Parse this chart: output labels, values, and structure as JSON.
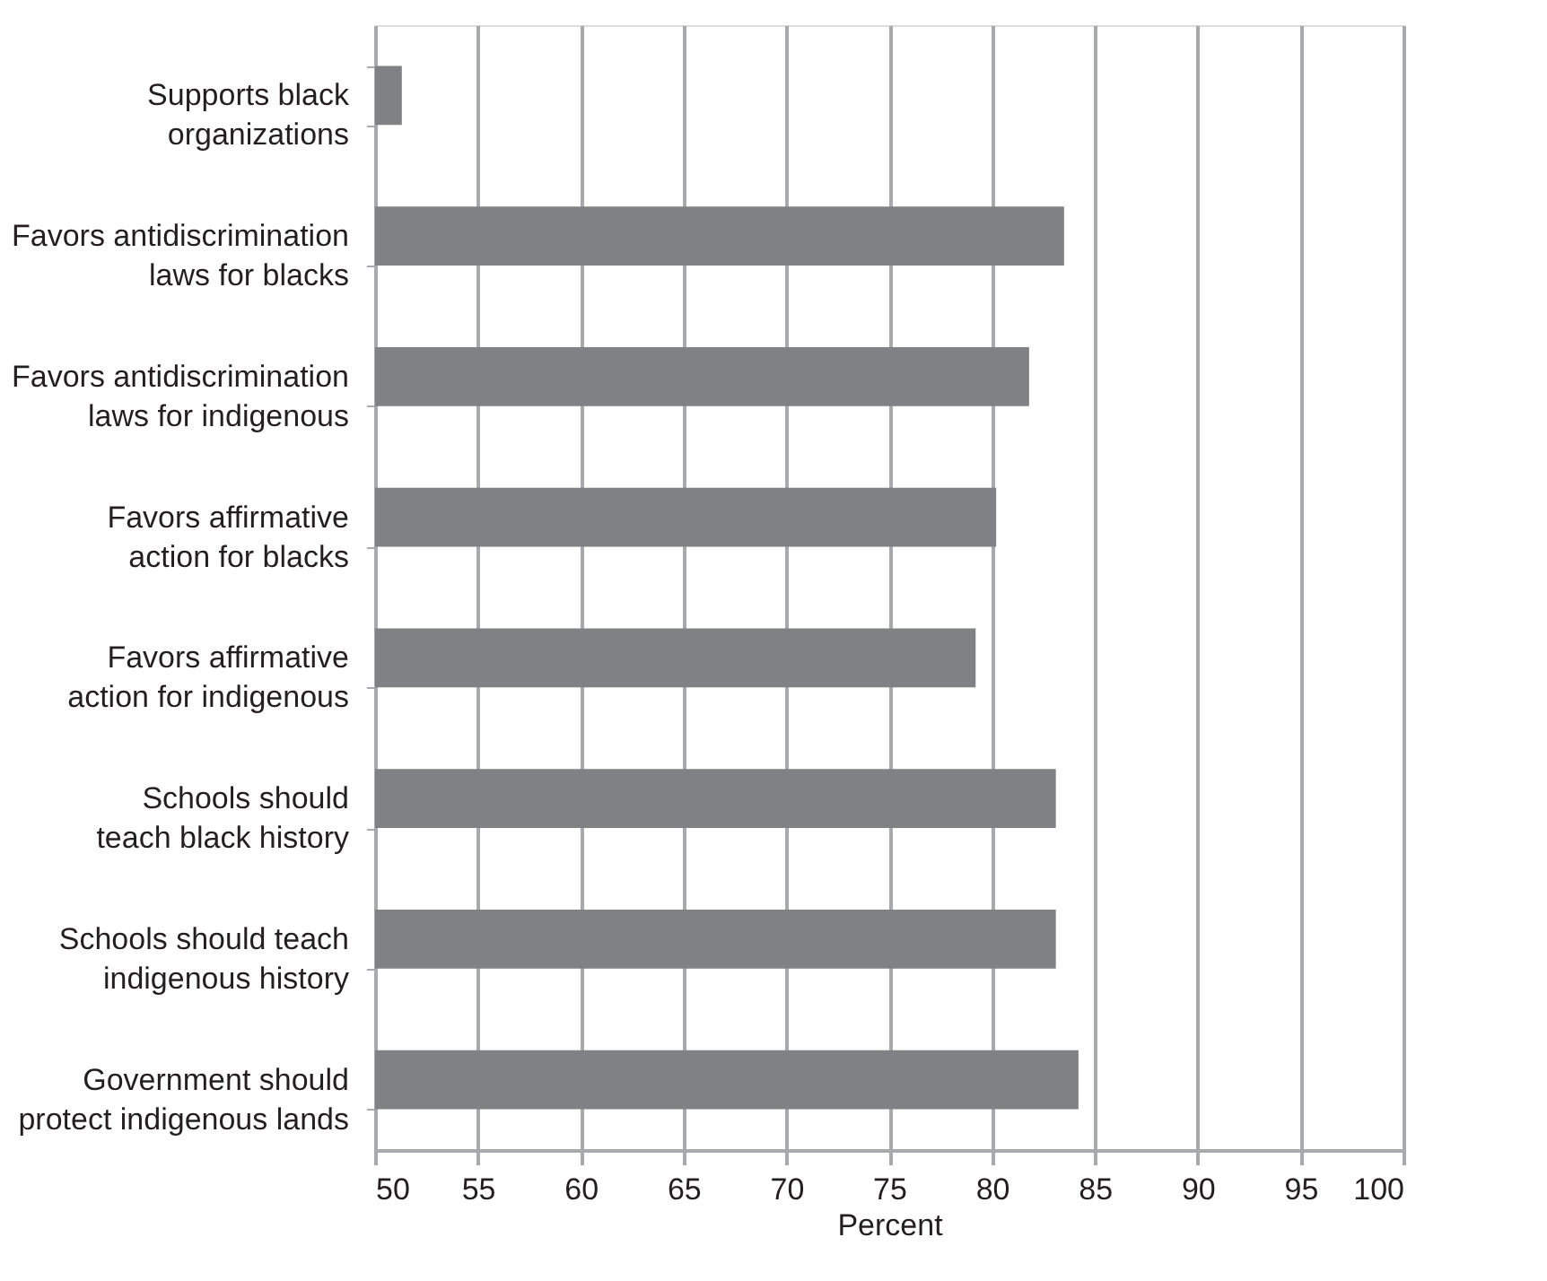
{
  "chart_data": {
    "type": "bar",
    "orientation": "horizontal",
    "xlabel": "Percent",
    "categories": [
      "Supports black organizations",
      "Favors antidiscrimination laws for blacks",
      "Favors antidiscrimination laws for indigenous",
      "Favors affirmative action for blacks",
      "Favors affirmative action for indigenous",
      "Schools should teach black history",
      "Schools should teach indigenous history",
      "Government should protect indigenous lands"
    ],
    "values": [
      51.3,
      83.5,
      81.8,
      80.2,
      79.2,
      83.1,
      83.1,
      84.2
    ],
    "color": "#808184",
    "xlim": [
      50,
      100
    ],
    "xticks": [
      50,
      55,
      60,
      65,
      70,
      75,
      80,
      85,
      90,
      95,
      100
    ],
    "grid": "x"
  }
}
